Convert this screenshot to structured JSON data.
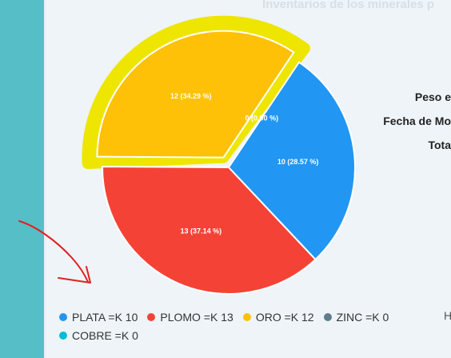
{
  "header": {
    "title": "Inventarios de los minerales p"
  },
  "info_labels": [
    "Peso e",
    "Fecha de Mo",
    "Tota"
  ],
  "legend_stub": "H",
  "colors": {
    "PLATA": "#2196f3",
    "PLOMO": "#f44336",
    "ORO": "#ffc107",
    "ZINC": "#607d8b",
    "COBRE": "#00bcd4",
    "highlight": "#eee600",
    "annotation_arrow": "#e0201e"
  },
  "chart_data": {
    "type": "pie",
    "slices": [
      {
        "name": "PLATA",
        "value": 10,
        "label": "10 (28.57 %)",
        "legend": "PLATA =K 10"
      },
      {
        "name": "PLOMO",
        "value": 13,
        "label": "13 (37.14 %)",
        "legend": "PLOMO =K 13"
      },
      {
        "name": "ORO",
        "value": 12,
        "label": "12 (34.29 %)",
        "legend": "ORO =K 12"
      },
      {
        "name": "ZINC",
        "value": 0,
        "label": "0 (0.00 %)",
        "legend": "ZINC =K 0"
      },
      {
        "name": "COBRE",
        "value": 0,
        "label": "0 (0.00 %)",
        "legend": "COBRE =K 0"
      }
    ],
    "exploded": "ORO",
    "legend_position": "bottom-left"
  }
}
